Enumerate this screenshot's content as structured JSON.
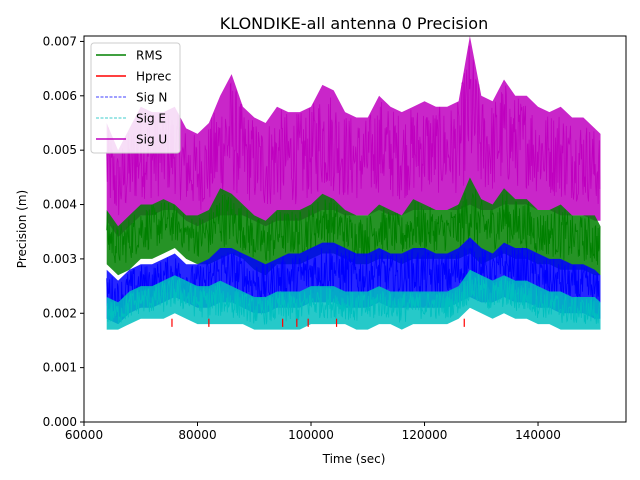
{
  "chart_data": {
    "type": "line",
    "title": "KLONDIKE-all antenna 0 Precision",
    "xlabel": "Time (sec)",
    "ylabel": "Precision (m)",
    "xlim": [
      60000,
      155500
    ],
    "ylim": [
      0.0,
      0.0071
    ],
    "x_ticks": [
      60000,
      80000,
      100000,
      120000,
      140000
    ],
    "x_tick_labels": [
      "60000",
      "80000",
      "100000",
      "120000",
      "140000"
    ],
    "y_ticks": [
      0.0,
      0.001,
      0.002,
      0.003,
      0.004,
      0.005,
      0.006,
      0.007
    ],
    "y_tick_labels": [
      "0.000",
      "0.001",
      "0.002",
      "0.003",
      "0.004",
      "0.005",
      "0.006",
      "0.007"
    ],
    "grid": false,
    "legend_position": "top-left",
    "x_data_range": [
      64000,
      151000
    ],
    "series": [
      {
        "name": "RMS",
        "color": "#008000",
        "style": "solid",
        "width": 1.5,
        "x": [
          64000,
          66000,
          68000,
          70000,
          72000,
          74000,
          76000,
          78000,
          80000,
          82000,
          84000,
          86000,
          88000,
          90000,
          92000,
          94000,
          96000,
          98000,
          100000,
          102000,
          104000,
          106000,
          108000,
          110000,
          112000,
          114000,
          116000,
          118000,
          120000,
          122000,
          124000,
          126000,
          128000,
          130000,
          132000,
          134000,
          136000,
          138000,
          140000,
          142000,
          144000,
          146000,
          148000,
          150000,
          151000
        ],
        "low": [
          0.0029,
          0.0027,
          0.0028,
          0.003,
          0.003,
          0.0031,
          0.0032,
          0.003,
          0.0029,
          0.0029,
          0.003,
          0.0031,
          0.003,
          0.0028,
          0.0027,
          0.0029,
          0.0029,
          0.0029,
          0.003,
          0.0031,
          0.0031,
          0.003,
          0.0029,
          0.0029,
          0.003,
          0.003,
          0.0029,
          0.003,
          0.003,
          0.003,
          0.003,
          0.003,
          0.0031,
          0.0029,
          0.003,
          0.0031,
          0.003,
          0.003,
          0.0029,
          0.0029,
          0.0028,
          0.0028,
          0.0028,
          0.0027,
          0.0027
        ],
        "high": [
          0.0039,
          0.0036,
          0.0038,
          0.004,
          0.004,
          0.0041,
          0.004,
          0.0038,
          0.0038,
          0.0039,
          0.0043,
          0.0042,
          0.004,
          0.0038,
          0.0037,
          0.0039,
          0.0039,
          0.0039,
          0.004,
          0.0042,
          0.0041,
          0.0039,
          0.0038,
          0.0038,
          0.004,
          0.0039,
          0.0038,
          0.0041,
          0.004,
          0.0039,
          0.0039,
          0.004,
          0.0045,
          0.0041,
          0.004,
          0.0043,
          0.0041,
          0.0041,
          0.0039,
          0.0039,
          0.004,
          0.0038,
          0.0038,
          0.0038,
          0.0036
        ]
      },
      {
        "name": "Hprec",
        "color": "#ff0000",
        "style": "solid",
        "width": 1.5,
        "x": [
          64000,
          151000
        ],
        "low": [
          0.0019,
          0.0019
        ],
        "high": [
          0.0019,
          0.0019
        ]
      },
      {
        "name": "Sig N",
        "color": "#0000ff",
        "style": "dashed",
        "width": 0.75,
        "x": [
          64000,
          66000,
          68000,
          70000,
          72000,
          74000,
          76000,
          78000,
          80000,
          82000,
          84000,
          86000,
          88000,
          90000,
          92000,
          94000,
          96000,
          98000,
          100000,
          102000,
          104000,
          106000,
          108000,
          110000,
          112000,
          114000,
          116000,
          118000,
          120000,
          122000,
          124000,
          126000,
          128000,
          130000,
          132000,
          134000,
          136000,
          138000,
          140000,
          142000,
          144000,
          146000,
          148000,
          150000,
          151000
        ],
        "low": [
          0.0019,
          0.0018,
          0.002,
          0.0021,
          0.0021,
          0.0022,
          0.0023,
          0.0022,
          0.0021,
          0.0021,
          0.0022,
          0.0022,
          0.0021,
          0.002,
          0.002,
          0.0021,
          0.0021,
          0.0021,
          0.0022,
          0.0022,
          0.0022,
          0.0021,
          0.0021,
          0.0021,
          0.0022,
          0.0021,
          0.0021,
          0.0021,
          0.0021,
          0.0021,
          0.0021,
          0.0022,
          0.0023,
          0.0022,
          0.0022,
          0.0023,
          0.0022,
          0.0022,
          0.0021,
          0.0021,
          0.002,
          0.002,
          0.002,
          0.0019,
          0.0019
        ],
        "high": [
          0.0028,
          0.0026,
          0.0028,
          0.0029,
          0.0029,
          0.003,
          0.0031,
          0.0029,
          0.0029,
          0.003,
          0.0032,
          0.0032,
          0.0031,
          0.003,
          0.0029,
          0.003,
          0.0031,
          0.0031,
          0.0032,
          0.0033,
          0.0033,
          0.0032,
          0.0031,
          0.0031,
          0.0032,
          0.0031,
          0.0031,
          0.0032,
          0.0032,
          0.0031,
          0.0031,
          0.0032,
          0.0034,
          0.0032,
          0.0031,
          0.0033,
          0.0032,
          0.0032,
          0.0031,
          0.003,
          0.003,
          0.0029,
          0.0029,
          0.0028,
          0.0027
        ]
      },
      {
        "name": "Sig E",
        "color": "#00bfbf",
        "style": "dashed",
        "width": 0.75,
        "x": [
          64000,
          66000,
          68000,
          70000,
          72000,
          74000,
          76000,
          78000,
          80000,
          82000,
          84000,
          86000,
          88000,
          90000,
          92000,
          94000,
          96000,
          98000,
          100000,
          102000,
          104000,
          106000,
          108000,
          110000,
          112000,
          114000,
          116000,
          118000,
          120000,
          122000,
          124000,
          126000,
          128000,
          130000,
          132000,
          134000,
          136000,
          138000,
          140000,
          142000,
          144000,
          146000,
          148000,
          150000,
          151000
        ],
        "low": [
          0.0017,
          0.0017,
          0.0018,
          0.0019,
          0.0019,
          0.0019,
          0.002,
          0.0019,
          0.0018,
          0.0018,
          0.0018,
          0.0018,
          0.0018,
          0.0017,
          0.0017,
          0.0017,
          0.0017,
          0.0017,
          0.0018,
          0.0018,
          0.0018,
          0.0018,
          0.0017,
          0.0017,
          0.0018,
          0.0018,
          0.0017,
          0.0018,
          0.0018,
          0.0018,
          0.0018,
          0.0019,
          0.0021,
          0.002,
          0.0019,
          0.002,
          0.0019,
          0.0019,
          0.0018,
          0.0018,
          0.0017,
          0.0017,
          0.0017,
          0.0017,
          0.0017
        ],
        "high": [
          0.0023,
          0.0022,
          0.0024,
          0.0025,
          0.0025,
          0.0026,
          0.0027,
          0.0026,
          0.0025,
          0.0025,
          0.0026,
          0.0025,
          0.0024,
          0.0023,
          0.0023,
          0.0024,
          0.0024,
          0.0024,
          0.0025,
          0.0025,
          0.0025,
          0.0024,
          0.0024,
          0.0024,
          0.0025,
          0.0024,
          0.0024,
          0.0024,
          0.0024,
          0.0024,
          0.0024,
          0.0025,
          0.0028,
          0.0027,
          0.0026,
          0.0027,
          0.0026,
          0.0026,
          0.0025,
          0.0024,
          0.0024,
          0.0023,
          0.0023,
          0.0023,
          0.0022
        ]
      },
      {
        "name": "Sig U",
        "color": "#bf00bf",
        "style": "solid",
        "width": 1.5,
        "x": [
          64000,
          66000,
          68000,
          70000,
          72000,
          74000,
          76000,
          78000,
          80000,
          82000,
          84000,
          86000,
          88000,
          90000,
          92000,
          94000,
          96000,
          98000,
          100000,
          102000,
          104000,
          106000,
          108000,
          110000,
          112000,
          114000,
          116000,
          118000,
          120000,
          122000,
          124000,
          126000,
          128000,
          130000,
          132000,
          134000,
          136000,
          138000,
          140000,
          142000,
          144000,
          146000,
          148000,
          150000,
          151000
        ],
        "low": [
          0.0037,
          0.0034,
          0.0036,
          0.0038,
          0.0038,
          0.0039,
          0.0039,
          0.0037,
          0.0036,
          0.0037,
          0.0038,
          0.0038,
          0.0038,
          0.0037,
          0.0036,
          0.0037,
          0.0037,
          0.0037,
          0.0038,
          0.0039,
          0.0039,
          0.0038,
          0.0038,
          0.0038,
          0.0039,
          0.0038,
          0.0038,
          0.0039,
          0.0039,
          0.0039,
          0.0039,
          0.0039,
          0.004,
          0.0039,
          0.0039,
          0.004,
          0.004,
          0.004,
          0.0039,
          0.0039,
          0.0038,
          0.0038,
          0.0038,
          0.0037,
          0.0037
        ],
        "high": [
          0.0055,
          0.005,
          0.0054,
          0.0058,
          0.0057,
          0.0057,
          0.0058,
          0.0054,
          0.0053,
          0.0055,
          0.006,
          0.0064,
          0.0058,
          0.0056,
          0.0055,
          0.0058,
          0.0057,
          0.0057,
          0.0058,
          0.0062,
          0.0061,
          0.0057,
          0.0056,
          0.0056,
          0.006,
          0.0058,
          0.0057,
          0.0058,
          0.0059,
          0.0058,
          0.0058,
          0.0059,
          0.0071,
          0.006,
          0.0059,
          0.0063,
          0.006,
          0.006,
          0.0058,
          0.0057,
          0.0058,
          0.0056,
          0.0056,
          0.0054,
          0.0053
        ]
      }
    ]
  }
}
